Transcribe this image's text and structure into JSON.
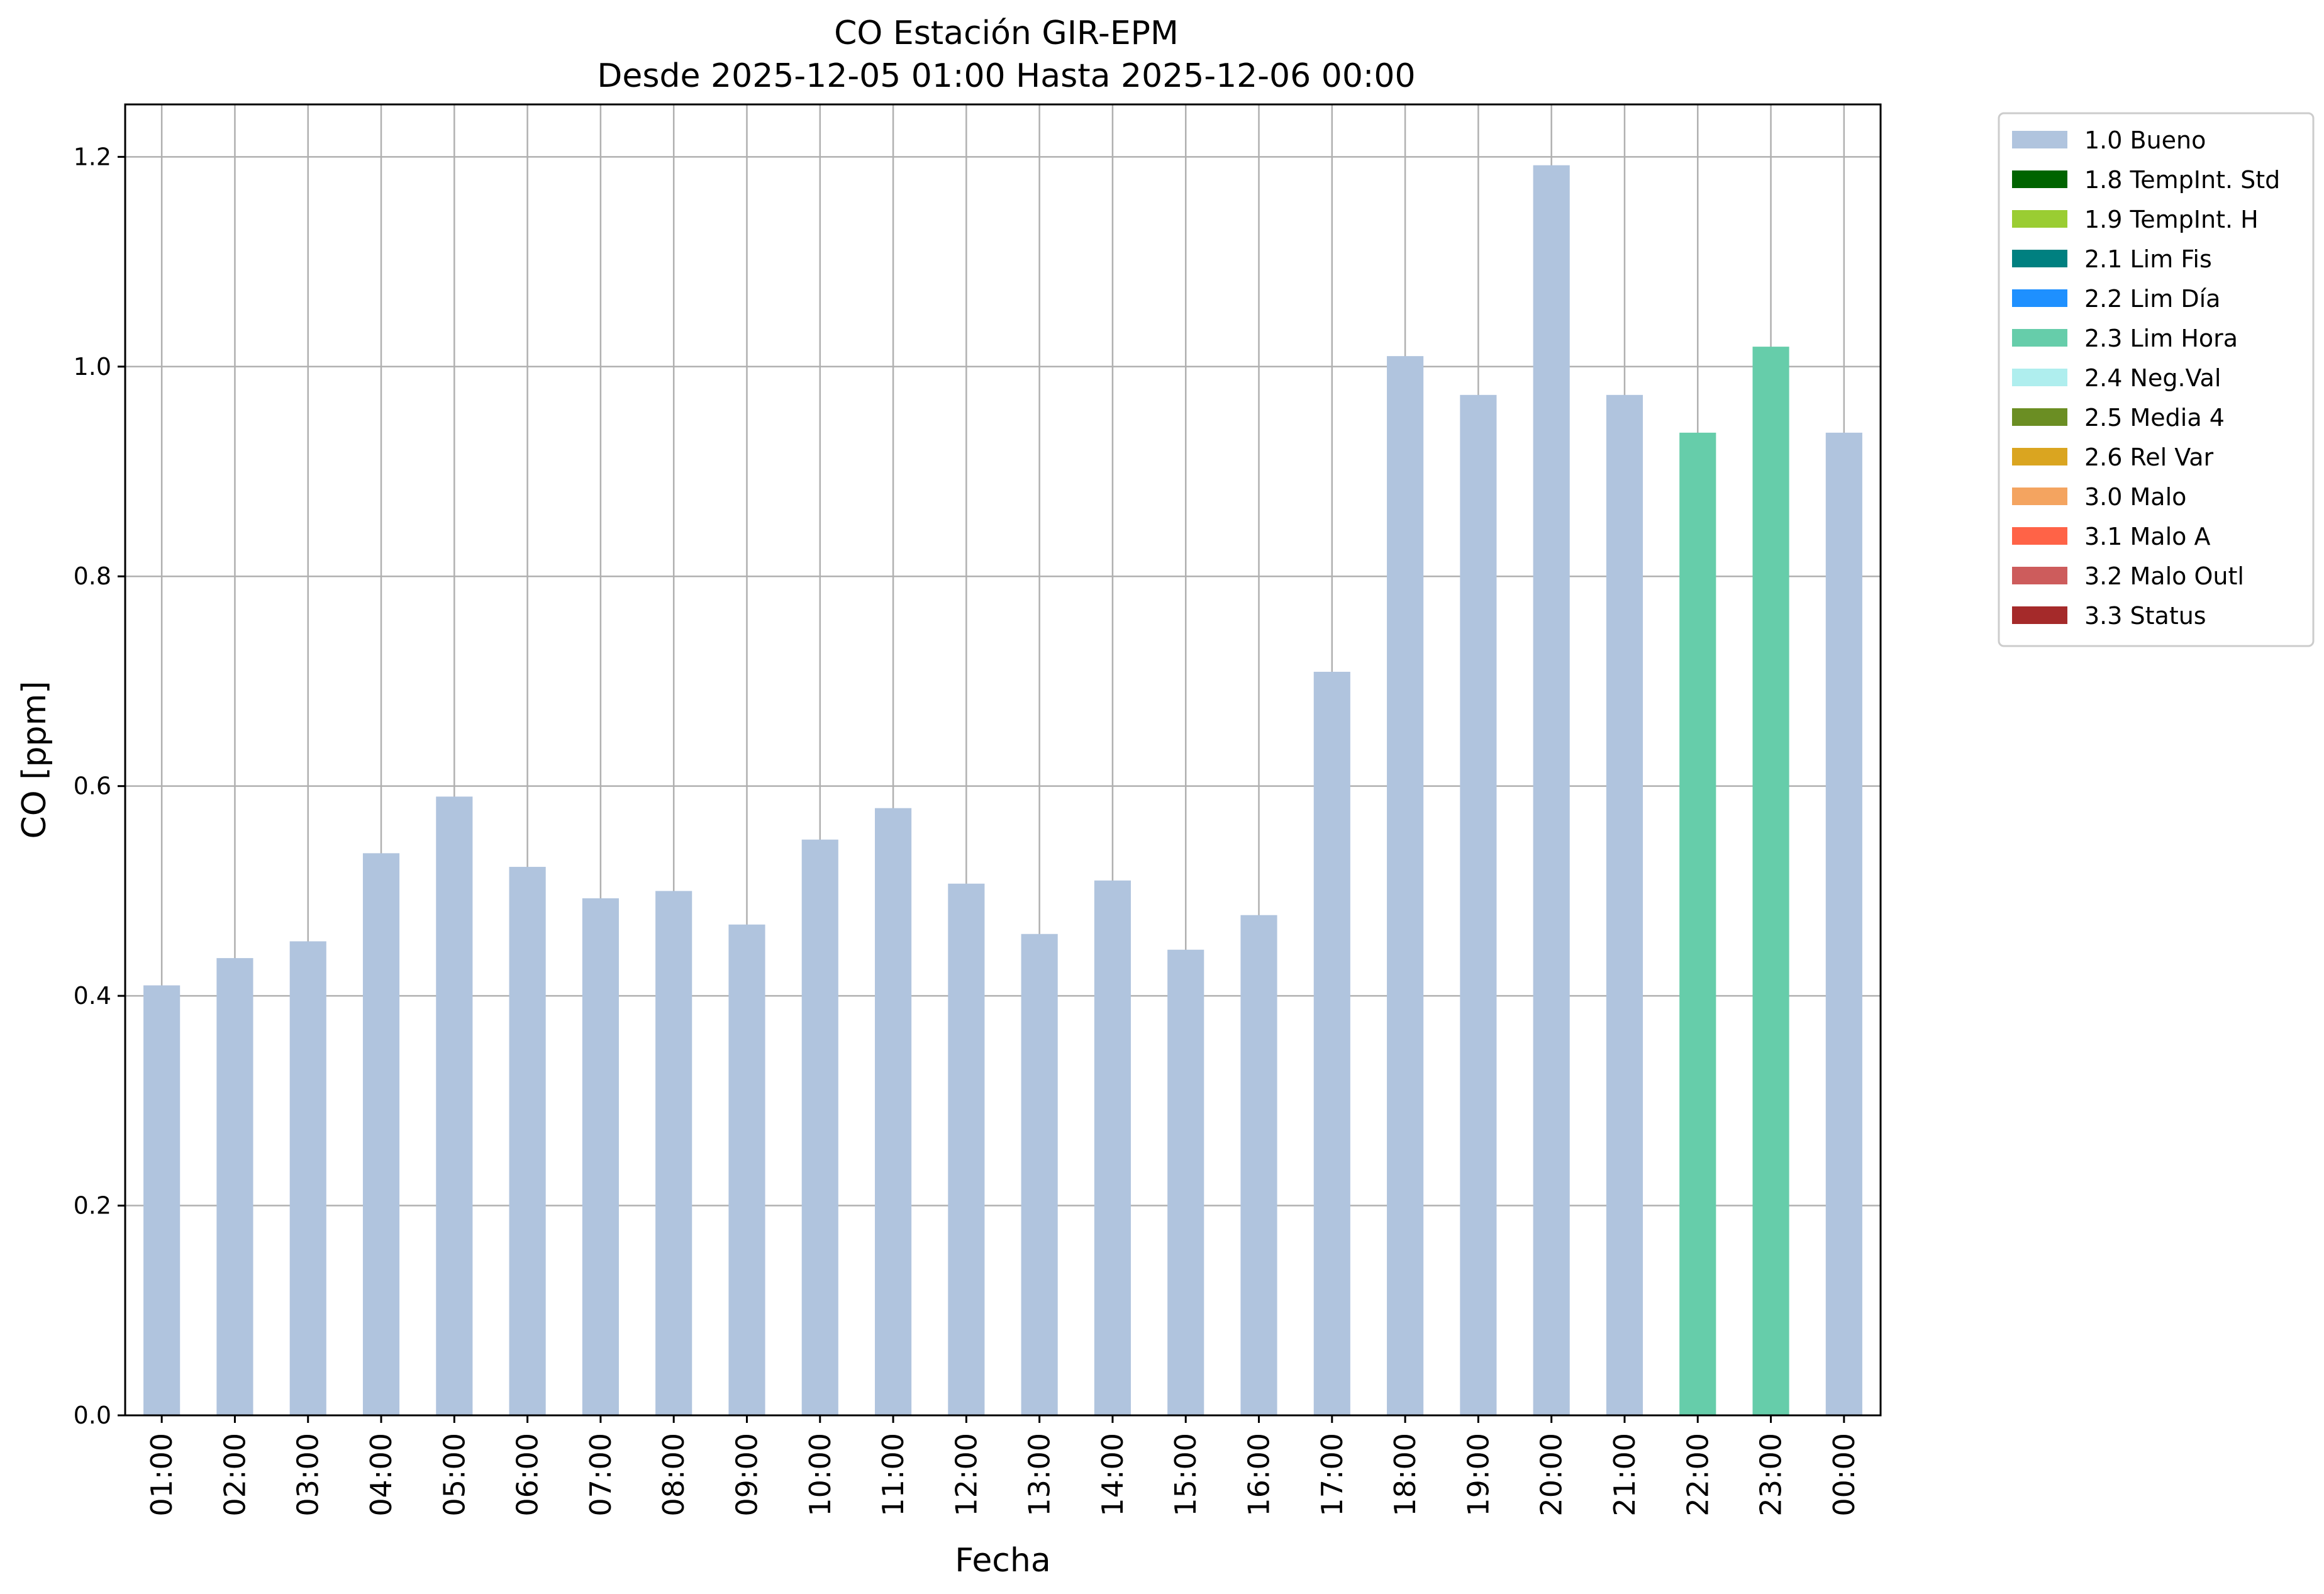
{
  "chart_data": {
    "type": "bar",
    "title": "CO Estación GIR-EPM",
    "subtitle": "Desde 2025-12-05 01:00 Hasta 2025-12-06 00:00",
    "xlabel": "Fecha",
    "ylabel": "CO [ppm]",
    "ylim": [
      0,
      1.25
    ],
    "yticks": [
      0.0,
      0.2,
      0.4,
      0.6,
      0.8,
      1.0,
      1.2
    ],
    "ytick_labels": [
      "0.0",
      "0.2",
      "0.4",
      "0.6",
      "0.8",
      "1.0",
      "1.2"
    ],
    "grid": true,
    "legend_position": "outside-top-right",
    "categories": [
      "01:00",
      "02:00",
      "03:00",
      "04:00",
      "05:00",
      "06:00",
      "07:00",
      "08:00",
      "09:00",
      "10:00",
      "11:00",
      "12:00",
      "13:00",
      "14:00",
      "15:00",
      "16:00",
      "17:00",
      "18:00",
      "19:00",
      "20:00",
      "21:00",
      "22:00",
      "23:00",
      "00:00"
    ],
    "values": [
      0.41,
      0.436,
      0.452,
      0.536,
      0.59,
      0.523,
      0.493,
      0.5,
      0.468,
      0.549,
      0.579,
      0.507,
      0.459,
      0.51,
      0.444,
      0.477,
      0.709,
      1.01,
      0.973,
      1.192,
      0.973,
      0.937,
      1.019,
      0.937
    ],
    "flags": [
      "1.0 Bueno",
      "1.0 Bueno",
      "1.0 Bueno",
      "1.0 Bueno",
      "1.0 Bueno",
      "1.0 Bueno",
      "1.0 Bueno",
      "1.0 Bueno",
      "1.0 Bueno",
      "1.0 Bueno",
      "1.0 Bueno",
      "1.0 Bueno",
      "1.0 Bueno",
      "1.0 Bueno",
      "1.0 Bueno",
      "1.0 Bueno",
      "1.0 Bueno",
      "1.0 Bueno",
      "1.0 Bueno",
      "1.0 Bueno",
      "1.0 Bueno",
      "2.3 Lim Hora",
      "2.3 Lim Hora",
      "1.0 Bueno"
    ],
    "legend": [
      {
        "name": "1.0 Bueno",
        "color": "#b0c4de"
      },
      {
        "name": "1.8 TempInt. Std",
        "color": "#006400"
      },
      {
        "name": "1.9 TempInt. H",
        "color": "#9acd32"
      },
      {
        "name": "2.1 Lim Fis",
        "color": "#008080"
      },
      {
        "name": "2.2 Lim Día",
        "color": "#1e90ff"
      },
      {
        "name": "2.3 Lim Hora",
        "color": "#66cdaa"
      },
      {
        "name": "2.4 Neg.Val",
        "color": "#afeeee"
      },
      {
        "name": "2.5 Media 4",
        "color": "#6b8e23"
      },
      {
        "name": "2.6 Rel Var",
        "color": "#daa520"
      },
      {
        "name": "3.0 Malo",
        "color": "#f4a460"
      },
      {
        "name": "3.1 Malo A",
        "color": "#ff6347"
      },
      {
        "name": "3.2 Malo Outl",
        "color": "#cd5c5c"
      },
      {
        "name": "3.3 Status",
        "color": "#a52a2a"
      }
    ]
  }
}
